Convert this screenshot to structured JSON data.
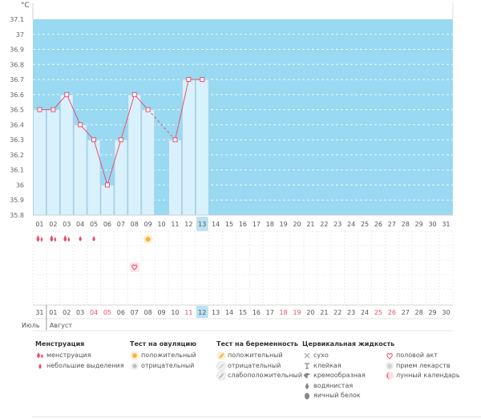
{
  "chart_data": {
    "type": "bar",
    "unit_label": "°C",
    "ylim": [
      35.8,
      37.1
    ],
    "y_ticks": [
      "35.8",
      "35.9",
      "36",
      "36.1",
      "36.2",
      "36.3",
      "36.4",
      "36.5",
      "36.6",
      "36.7",
      "36.8",
      "36.9",
      "37",
      "37.1"
    ],
    "day_numbers": [
      "01",
      "02",
      "03",
      "04",
      "05",
      "06",
      "07",
      "08",
      "09",
      "10",
      "11",
      "12",
      "13",
      "14",
      "15",
      "16",
      "17",
      "18",
      "19",
      "20",
      "21",
      "22",
      "23",
      "24",
      "25",
      "26",
      "27",
      "28",
      "29",
      "30",
      "31"
    ],
    "values": [
      36.5,
      36.5,
      36.6,
      36.4,
      36.3,
      36.0,
      36.3,
      36.6,
      36.5,
      null,
      36.3,
      36.7,
      36.7,
      null,
      null,
      null,
      null,
      null,
      null,
      null,
      null,
      null,
      null,
      null,
      null,
      null,
      null,
      null,
      null,
      null,
      null
    ],
    "dashed_segments": [
      [
        9,
        11
      ]
    ],
    "highlighted_index": 12,
    "accent_color": "#e8506e",
    "plot_bg_color": "#99d9f2",
    "bar_fill_color": "#d9f1fc",
    "bar_stroke_color": "#a9cfe6",
    "highlight_color": "#b9e2f3",
    "menstruation": [
      {
        "day_index": 0,
        "kind": "menstruation"
      },
      {
        "day_index": 1,
        "kind": "menstruation"
      },
      {
        "day_index": 2,
        "kind": "menstruation"
      },
      {
        "day_index": 3,
        "kind": "light"
      },
      {
        "day_index": 4,
        "kind": "light"
      }
    ],
    "ovulation_positive_day_index": 8,
    "intercourse_day_index": 7,
    "calendar_dates": [
      "31",
      "01",
      "02",
      "03",
      "04",
      "05",
      "06",
      "07",
      "08",
      "09",
      "10",
      "11",
      "12",
      "13",
      "14",
      "15",
      "16",
      "17",
      "18",
      "19",
      "20",
      "21",
      "22",
      "23",
      "24",
      "25",
      "26",
      "27",
      "28",
      "29",
      "30"
    ],
    "calendar_red_dates": [
      "04",
      "05",
      "11",
      "18",
      "19",
      "25",
      "26"
    ],
    "month_labels": [
      "Июль",
      "Август"
    ]
  },
  "legend": [
    {
      "title": "Менструация",
      "items": [
        {
          "icon": "drop-large-icon",
          "label": "менструация"
        },
        {
          "icon": "drop-small-icon",
          "label": "небольшие выделения"
        }
      ]
    },
    {
      "title": "Тест на овуляцию",
      "items": [
        {
          "icon": "sun-positive-icon",
          "label": "положительный"
        },
        {
          "icon": "sun-negative-icon",
          "label": "отрицательный"
        }
      ]
    },
    {
      "title": "Тест на беременность",
      "items": [
        {
          "icon": "test-positive-icon",
          "label": "положительный"
        },
        {
          "icon": "test-negative-icon",
          "label": "отрицательный"
        },
        {
          "icon": "test-weak-icon",
          "label": "слабоположительный"
        }
      ]
    },
    {
      "title": "Цервикальная жидкость",
      "items": [
        {
          "icon": "cross-icon",
          "label": "сухо"
        },
        {
          "icon": "sticky-icon",
          "label": "клейкая"
        },
        {
          "icon": "creamy-icon",
          "label": "кремообразная"
        },
        {
          "icon": "watery-drop-icon",
          "label": "водянистая"
        },
        {
          "icon": "egg-white-icon",
          "label": "яичный белок"
        }
      ]
    },
    {
      "title": "",
      "items": [
        {
          "icon": "heart-icon",
          "label": "половой акт"
        },
        {
          "icon": "pill-icon",
          "label": "прием лекарств"
        },
        {
          "icon": "moon-icon",
          "label": "лунный календарь"
        }
      ]
    }
  ]
}
